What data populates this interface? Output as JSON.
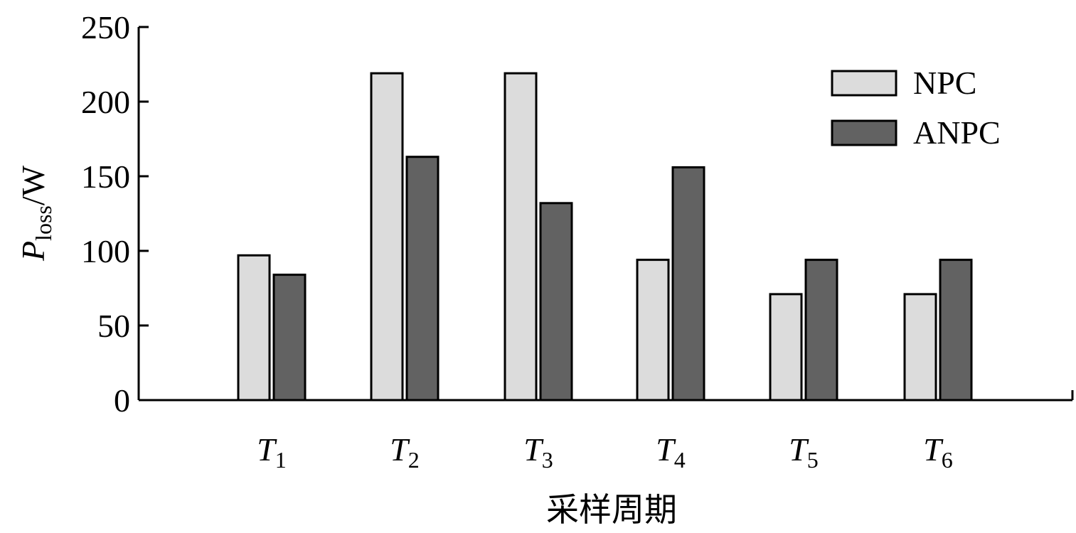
{
  "chart_data": {
    "type": "bar",
    "categories": [
      {
        "main": "T",
        "sub": "1"
      },
      {
        "main": "T",
        "sub": "2"
      },
      {
        "main": "T",
        "sub": "3"
      },
      {
        "main": "T",
        "sub": "4"
      },
      {
        "main": "T",
        "sub": "5"
      },
      {
        "main": "T",
        "sub": "6"
      }
    ],
    "series": [
      {
        "name": "NPC",
        "color": "#dcdcdc",
        "values": [
          97,
          219,
          219,
          94,
          71,
          71
        ]
      },
      {
        "name": "ANPC",
        "color": "#626262",
        "values": [
          84,
          163,
          132,
          156,
          94,
          94
        ]
      }
    ],
    "ylabel": {
      "main": "P",
      "sub": "loss",
      "unit": "/W"
    },
    "xlabel": "采样周期",
    "ylim": [
      0,
      250
    ],
    "yticks": [
      0,
      50,
      100,
      150,
      200,
      250
    ],
    "grid": false,
    "legend_position": "top-right"
  }
}
